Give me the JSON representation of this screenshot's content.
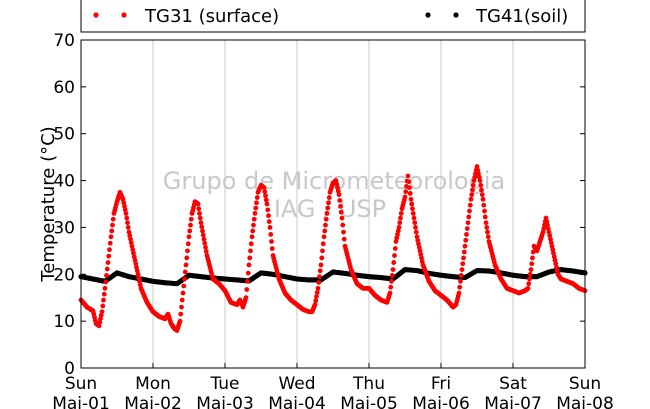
{
  "chart_data": {
    "type": "scatter",
    "title": "",
    "xlabel": "",
    "ylabel": "Temperature (°C)",
    "ylim": [
      0,
      70
    ],
    "yticks": [
      0,
      10,
      20,
      30,
      40,
      50,
      60,
      70
    ],
    "xlim": [
      "2014-05-01 00:00",
      "2014-05-08 00:00"
    ],
    "xticks": [
      {
        "day": "Sun",
        "date": "Mai-01"
      },
      {
        "day": "Mon",
        "date": "Mai-02"
      },
      {
        "day": "Tue",
        "date": "Mai-03"
      },
      {
        "day": "Wed",
        "date": "Mai-04"
      },
      {
        "day": "Thu",
        "date": "Mai-05"
      },
      {
        "day": "Fri",
        "date": "Mai-06"
      },
      {
        "day": "Sat",
        "date": "Mai-07"
      },
      {
        "day": "Sun",
        "date": "Mai-08"
      }
    ],
    "grid": "vertical",
    "legend_position": "top",
    "watermark": [
      "Grupo de Micrometeorologia",
      "IAG / USP"
    ],
    "series": [
      {
        "name": "TG31 (surface)",
        "color": "#ff0000",
        "x_unit": "hours",
        "points": [
          [
            0,
            14.5
          ],
          [
            2,
            13.0
          ],
          [
            4,
            12.2
          ],
          [
            5,
            9.5
          ],
          [
            6,
            9.0
          ],
          [
            7,
            12.0
          ],
          [
            8,
            17.0
          ],
          [
            10,
            28.0
          ],
          [
            11,
            33.0
          ],
          [
            12,
            35.5
          ],
          [
            13,
            37.5
          ],
          [
            14,
            36.0
          ],
          [
            15,
            33.0
          ],
          [
            16,
            29.0
          ],
          [
            18,
            23.0
          ],
          [
            20,
            17.0
          ],
          [
            22,
            14.0
          ],
          [
            24,
            12.0
          ],
          [
            26,
            11.0
          ],
          [
            28,
            10.5
          ],
          [
            29,
            11.5
          ],
          [
            30,
            9.5
          ],
          [
            31,
            8.5
          ],
          [
            32,
            8.0
          ],
          [
            33,
            10.0
          ],
          [
            34,
            16.0
          ],
          [
            35,
            22.0
          ],
          [
            36,
            28.0
          ],
          [
            37,
            33.0
          ],
          [
            38,
            35.5
          ],
          [
            39,
            35.0
          ],
          [
            40,
            31.0
          ],
          [
            42,
            24.0
          ],
          [
            44,
            19.0
          ],
          [
            46,
            18.0
          ],
          [
            48,
            16.5
          ],
          [
            50,
            14.0
          ],
          [
            52,
            13.5
          ],
          [
            53,
            14.5
          ],
          [
            54,
            13.0
          ],
          [
            55,
            15.0
          ],
          [
            56,
            22.0
          ],
          [
            57,
            28.0
          ],
          [
            58,
            33.0
          ],
          [
            59,
            37.5
          ],
          [
            60,
            39.0
          ],
          [
            61,
            38.5
          ],
          [
            62,
            35.0
          ],
          [
            63,
            30.0
          ],
          [
            64,
            24.0
          ],
          [
            66,
            19.0
          ],
          [
            68,
            16.0
          ],
          [
            70,
            14.5
          ],
          [
            72,
            13.5
          ],
          [
            74,
            12.5
          ],
          [
            76,
            12.0
          ],
          [
            77,
            12.0
          ],
          [
            78,
            13.5
          ],
          [
            79,
            17.0
          ],
          [
            80,
            22.0
          ],
          [
            81,
            28.0
          ],
          [
            82,
            33.0
          ],
          [
            83,
            37.5
          ],
          [
            84,
            39.5
          ],
          [
            85,
            40.0
          ],
          [
            86,
            37.0
          ],
          [
            87,
            32.0
          ],
          [
            88,
            26.0
          ],
          [
            90,
            21.0
          ],
          [
            92,
            18.0
          ],
          [
            94,
            17.0
          ],
          [
            96,
            17.0
          ],
          [
            98,
            15.5
          ],
          [
            100,
            14.5
          ],
          [
            102,
            14.0
          ],
          [
            103,
            16.0
          ],
          [
            104,
            21.0
          ],
          [
            105,
            27.0
          ],
          [
            106,
            30.0
          ],
          [
            107,
            34.0
          ],
          [
            108,
            36.5
          ],
          [
            109,
            41.0
          ],
          [
            110,
            36.0
          ],
          [
            111,
            32.0
          ],
          [
            112,
            28.0
          ],
          [
            114,
            22.0
          ],
          [
            116,
            18.5
          ],
          [
            118,
            16.5
          ],
          [
            120,
            15.5
          ],
          [
            122,
            14.5
          ],
          [
            124,
            13.0
          ],
          [
            125,
            13.5
          ],
          [
            126,
            16.0
          ],
          [
            127,
            21.0
          ],
          [
            128,
            26.0
          ],
          [
            129,
            31.0
          ],
          [
            130,
            36.0
          ],
          [
            131,
            40.0
          ],
          [
            132,
            43.0
          ],
          [
            133,
            40.0
          ],
          [
            134,
            36.0
          ],
          [
            135,
            31.0
          ],
          [
            136,
            27.0
          ],
          [
            138,
            22.0
          ],
          [
            140,
            19.0
          ],
          [
            142,
            17.0
          ],
          [
            144,
            16.5
          ],
          [
            146,
            16.0
          ],
          [
            148,
            16.5
          ],
          [
            149,
            17.0
          ],
          [
            150,
            21.0
          ],
          [
            151,
            26.0
          ],
          [
            152,
            25.0
          ],
          [
            153,
            27.0
          ],
          [
            154,
            29.0
          ],
          [
            155,
            32.0
          ],
          [
            156,
            29.0
          ],
          [
            157,
            26.0
          ],
          [
            158,
            23.0
          ],
          [
            159,
            20.0
          ],
          [
            160,
            19.0
          ],
          [
            162,
            18.5
          ],
          [
            164,
            18.0
          ],
          [
            166,
            17.0
          ],
          [
            168,
            16.5
          ]
        ]
      },
      {
        "name": "TG41(soil)",
        "color": "#000000",
        "x_unit": "hours",
        "points": [
          [
            0,
            19.5
          ],
          [
            4,
            19.0
          ],
          [
            8,
            18.5
          ],
          [
            12,
            20.3
          ],
          [
            16,
            19.5
          ],
          [
            20,
            19.0
          ],
          [
            24,
            18.5
          ],
          [
            28,
            18.2
          ],
          [
            32,
            18.0
          ],
          [
            36,
            19.8
          ],
          [
            40,
            19.5
          ],
          [
            44,
            19.2
          ],
          [
            48,
            19.0
          ],
          [
            52,
            18.8
          ],
          [
            56,
            18.6
          ],
          [
            60,
            20.3
          ],
          [
            64,
            20.0
          ],
          [
            68,
            19.5
          ],
          [
            72,
            19.0
          ],
          [
            76,
            18.8
          ],
          [
            80,
            18.8
          ],
          [
            84,
            20.5
          ],
          [
            88,
            20.2
          ],
          [
            92,
            19.8
          ],
          [
            96,
            19.5
          ],
          [
            100,
            19.3
          ],
          [
            104,
            19.0
          ],
          [
            108,
            21.0
          ],
          [
            112,
            20.8
          ],
          [
            116,
            20.2
          ],
          [
            120,
            19.8
          ],
          [
            124,
            19.5
          ],
          [
            128,
            19.3
          ],
          [
            132,
            20.8
          ],
          [
            136,
            20.7
          ],
          [
            140,
            20.3
          ],
          [
            144,
            19.8
          ],
          [
            148,
            19.5
          ],
          [
            152,
            19.5
          ],
          [
            156,
            20.5
          ],
          [
            160,
            21.0
          ],
          [
            164,
            20.7
          ],
          [
            168,
            20.3
          ]
        ]
      }
    ]
  }
}
